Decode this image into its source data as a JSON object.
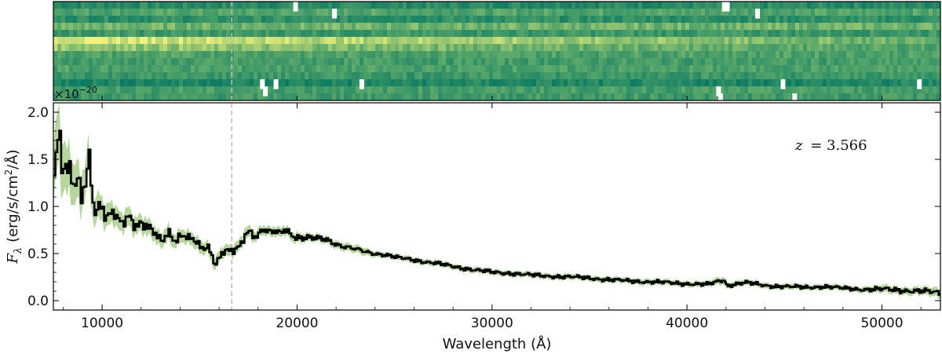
{
  "chart_data": [
    {
      "type": "heatmap",
      "panel": "2d-spectrum",
      "x_range": [
        7500,
        53000
      ],
      "n_spatial_rows": 14,
      "exponent_label": "×10",
      "exponent_power": "−20",
      "row_profile": [
        0.18,
        0.42,
        0.22,
        0.55,
        0.3,
        0.95,
        0.72,
        0.4,
        0.34,
        0.38,
        0.3,
        0.12,
        0.36,
        0.32
      ],
      "masked_pixels": [
        {
          "x": 19800,
          "row": 0
        },
        {
          "x": 21800,
          "row": 1
        },
        {
          "x": 41800,
          "row": 0
        },
        {
          "x": 41950,
          "row": 0
        },
        {
          "x": 43500,
          "row": 1
        },
        {
          "x": 18100,
          "row": 11
        },
        {
          "x": 18250,
          "row": 12
        },
        {
          "x": 18800,
          "row": 11
        },
        {
          "x": 23200,
          "row": 11
        },
        {
          "x": 41500,
          "row": 12
        },
        {
          "x": 41600,
          "row": 13
        },
        {
          "x": 44800,
          "row": 11
        },
        {
          "x": 45400,
          "row": 13
        },
        {
          "x": 51800,
          "row": 11
        }
      ],
      "colors": {
        "low": "#0a7a62",
        "mid": "#5fab6b",
        "high": "#f2f27a"
      }
    },
    {
      "type": "line",
      "panel": "1d-spectrum",
      "xlabel": "Wavelength (Å)",
      "ylabel": "F_λ (erg/s/cm²/Å)",
      "ylabel_symbol": "F",
      "ylabel_sub": "λ",
      "ylabel_units": "(erg/s/cm",
      "ylabel_units_sup": "2",
      "ylabel_units_end": "/Å)",
      "xlim": [
        7500,
        53000
      ],
      "ylim": [
        -0.1,
        2.1
      ],
      "xticks": [
        10000,
        20000,
        30000,
        40000,
        50000
      ],
      "xtick_labels": [
        "10000",
        "20000",
        "30000",
        "40000",
        "50000"
      ],
      "yticks": [
        0.0,
        0.5,
        1.0,
        1.5,
        2.0
      ],
      "ytick_labels": [
        "0.0",
        "0.5",
        "1.0",
        "1.5",
        "2.0"
      ],
      "annotation": "z = 3.566",
      "annotation_lhs": "z",
      "annotation_rhs": "= 3.566",
      "vline_x": 16650,
      "grid": false,
      "colors": {
        "line": "#000000",
        "error": "#a8d08d",
        "vline": "#bbbbbb"
      },
      "series": [
        {
          "x": [
            7500,
            7700,
            7900,
            8100,
            8300,
            8500,
            8700,
            8900,
            9100,
            9300,
            9500,
            9700,
            10000,
            10300,
            10600,
            11000,
            11400,
            11800,
            12200,
            12600,
            13000,
            13400,
            13800,
            14200,
            14600,
            15000,
            15400,
            15800,
            16000,
            16300,
            16700,
            17000,
            17300,
            17600,
            17900,
            18200,
            18600,
            19000,
            19300,
            19600,
            20000,
            20500,
            21000,
            21500,
            22000,
            22500,
            23000,
            23500,
            24000,
            24500,
            25000,
            26000,
            27000,
            28000,
            29000,
            30000,
            31000,
            32000,
            33000,
            34000,
            35000,
            36000,
            37000,
            38000,
            39000,
            40000,
            41000,
            41900,
            42000,
            42500,
            43000,
            44000,
            45000,
            46000,
            47000,
            48000,
            49000,
            50000,
            51000,
            52000,
            53000
          ],
          "values": [
            1.45,
            1.7,
            1.4,
            1.55,
            1.3,
            1.2,
            1.35,
            1.1,
            1.25,
            1.5,
            1.05,
            0.95,
            0.97,
            0.9,
            0.92,
            0.83,
            0.88,
            0.78,
            0.82,
            0.72,
            0.65,
            0.7,
            0.64,
            0.7,
            0.65,
            0.58,
            0.55,
            0.4,
            0.45,
            0.55,
            0.52,
            0.58,
            0.7,
            0.72,
            0.68,
            0.75,
            0.74,
            0.72,
            0.76,
            0.7,
            0.67,
            0.68,
            0.66,
            0.64,
            0.6,
            0.57,
            0.54,
            0.52,
            0.5,
            0.48,
            0.46,
            0.43,
            0.4,
            0.36,
            0.33,
            0.3,
            0.29,
            0.27,
            0.26,
            0.25,
            0.24,
            0.22,
            0.21,
            0.2,
            0.19,
            0.18,
            0.17,
            0.22,
            0.16,
            0.17,
            0.19,
            0.16,
            0.15,
            0.14,
            0.15,
            0.13,
            0.12,
            0.12,
            0.11,
            0.1,
            0.08
          ],
          "error": [
            0.3,
            0.3,
            0.28,
            0.25,
            0.25,
            0.22,
            0.2,
            0.2,
            0.18,
            0.18,
            0.15,
            0.14,
            0.13,
            0.12,
            0.11,
            0.1,
            0.1,
            0.09,
            0.09,
            0.08,
            0.08,
            0.08,
            0.07,
            0.07,
            0.07,
            0.07,
            0.06,
            0.06,
            0.06,
            0.06,
            0.06,
            0.06,
            0.06,
            0.06,
            0.05,
            0.05,
            0.05,
            0.05,
            0.05,
            0.05,
            0.05,
            0.04,
            0.04,
            0.04,
            0.04,
            0.04,
            0.04,
            0.04,
            0.03,
            0.03,
            0.03,
            0.03,
            0.03,
            0.03,
            0.03,
            0.03,
            0.03,
            0.03,
            0.03,
            0.03,
            0.03,
            0.03,
            0.03,
            0.03,
            0.03,
            0.03,
            0.03,
            0.04,
            0.03,
            0.03,
            0.03,
            0.03,
            0.03,
            0.03,
            0.03,
            0.03,
            0.03,
            0.04,
            0.04,
            0.04,
            0.05
          ]
        }
      ]
    }
  ]
}
